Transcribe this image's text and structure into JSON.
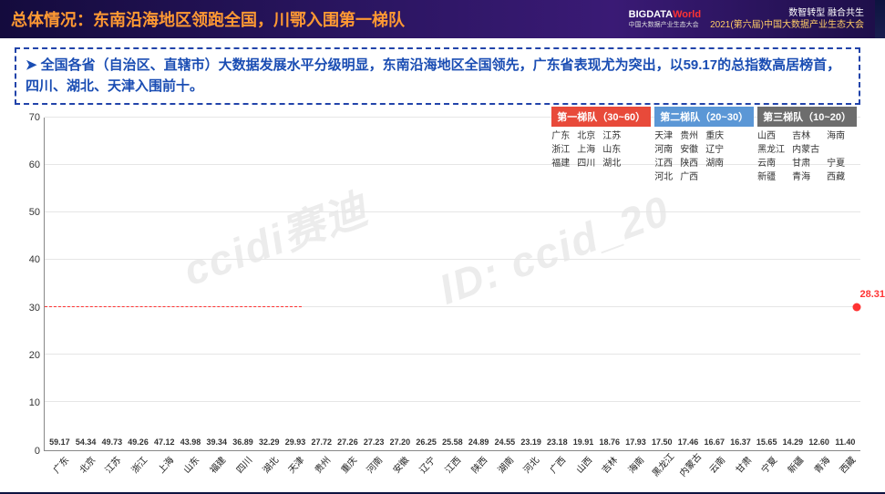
{
  "header": {
    "title": "总体情况：东南沿海地区领跑全国，川鄂入围第一梯队",
    "logo_main": "BIGDATA",
    "logo_accent": "World",
    "logo_sub": "中国大数据产业生态大会",
    "tagline1": "数智转型 融合共生",
    "tagline2": "2021(第六届)中国大数据产业生态大会"
  },
  "blurb": "全国各省（自治区、直辖市）大数据发展水平分级明显，东南沿海地区全国领先，广东省表现尤为突出，以59.17的总指数高居榜首，四川、湖北、天津入围前十。",
  "chart": {
    "type": "bar",
    "ylim": [
      0,
      70
    ],
    "ytick_step": 10,
    "grid_color": "#e6e6e6",
    "axis_color": "#888888",
    "background_color": "#ffffff",
    "tier_colors": {
      "t1": "#e84a3a",
      "t2": "#f6a93b",
      "t3": "#5b97d6",
      "t4": "#7a4ea0"
    },
    "label_color": "#333333",
    "label_fontsize": 9,
    "refline": {
      "value": 30,
      "color": "#ff3333",
      "style": "dashed",
      "extent": 0.315
    },
    "average_marker": {
      "value": 28.31,
      "x": 0.995,
      "color": "#ff3333",
      "label": "28.31"
    },
    "bars": [
      {
        "name": "广东",
        "value": 59.17,
        "tier": "t1"
      },
      {
        "name": "北京",
        "value": 54.34,
        "tier": "t1"
      },
      {
        "name": "江苏",
        "value": 49.73,
        "tier": "t2"
      },
      {
        "name": "浙江",
        "value": 49.26,
        "tier": "t2"
      },
      {
        "name": "上海",
        "value": 47.12,
        "tier": "t2"
      },
      {
        "name": "山东",
        "value": 43.98,
        "tier": "t2"
      },
      {
        "name": "福建",
        "value": 39.34,
        "tier": "t2"
      },
      {
        "name": "四川",
        "value": 36.89,
        "tier": "t2"
      },
      {
        "name": "湖北",
        "value": 32.29,
        "tier": "t2"
      },
      {
        "name": "天津",
        "value": 29.93,
        "tier": "t3"
      },
      {
        "name": "贵州",
        "value": 27.72,
        "tier": "t3"
      },
      {
        "name": "重庆",
        "value": 27.26,
        "tier": "t3"
      },
      {
        "name": "河南",
        "value": 27.23,
        "tier": "t3"
      },
      {
        "name": "安徽",
        "value": 27.2,
        "tier": "t3"
      },
      {
        "name": "辽宁",
        "value": 26.25,
        "tier": "t3"
      },
      {
        "name": "江西",
        "value": 25.58,
        "tier": "t3"
      },
      {
        "name": "陕西",
        "value": 24.89,
        "tier": "t3"
      },
      {
        "name": "湖南",
        "value": 24.55,
        "tier": "t3"
      },
      {
        "name": "河北",
        "value": 23.19,
        "tier": "t3"
      },
      {
        "name": "广西",
        "value": 23.18,
        "tier": "t3"
      },
      {
        "name": "山西",
        "value": 19.91,
        "tier": "t4"
      },
      {
        "name": "吉林",
        "value": 18.76,
        "tier": "t4"
      },
      {
        "name": "海南",
        "value": 17.93,
        "tier": "t4"
      },
      {
        "name": "黑龙江",
        "value": 17.5,
        "tier": "t4"
      },
      {
        "name": "内蒙古",
        "value": 17.46,
        "tier": "t4"
      },
      {
        "name": "云南",
        "value": 16.67,
        "tier": "t4"
      },
      {
        "name": "甘肃",
        "value": 16.37,
        "tier": "t4"
      },
      {
        "name": "宁夏",
        "value": 15.65,
        "tier": "t4"
      },
      {
        "name": "新疆",
        "value": 14.29,
        "tier": "t4"
      },
      {
        "name": "青海",
        "value": 12.6,
        "tier": "t4"
      },
      {
        "name": "西藏",
        "value": 11.4,
        "tier": "t4"
      }
    ]
  },
  "legend": {
    "tiers": [
      {
        "title": "第一梯队（30~60）",
        "color": "#e84a3a",
        "cols": [
          [
            "广东",
            "浙江",
            "福建"
          ],
          [
            "北京",
            "上海",
            "四川"
          ],
          [
            "江苏",
            "山东",
            "湖北"
          ]
        ]
      },
      {
        "title": "第二梯队（20~30）",
        "color": "#5b97d6",
        "cols": [
          [
            "天津",
            "河南",
            "江西",
            "河北"
          ],
          [
            "贵州",
            "安徽",
            "陕西",
            "广西"
          ],
          [
            "重庆",
            "辽宁",
            "湖南"
          ]
        ]
      },
      {
        "title": "第三梯队（10~20）",
        "color": "#6d6d6d",
        "cols": [
          [
            "山西",
            "黑龙江",
            "云南",
            "新疆"
          ],
          [
            "吉林",
            "内蒙古",
            "甘肃",
            "青海"
          ],
          [
            "海南",
            "",
            "宁夏",
            "西藏"
          ]
        ]
      }
    ]
  },
  "watermarks": [
    "ccidi赛迪",
    "ID: ccid_20"
  ]
}
